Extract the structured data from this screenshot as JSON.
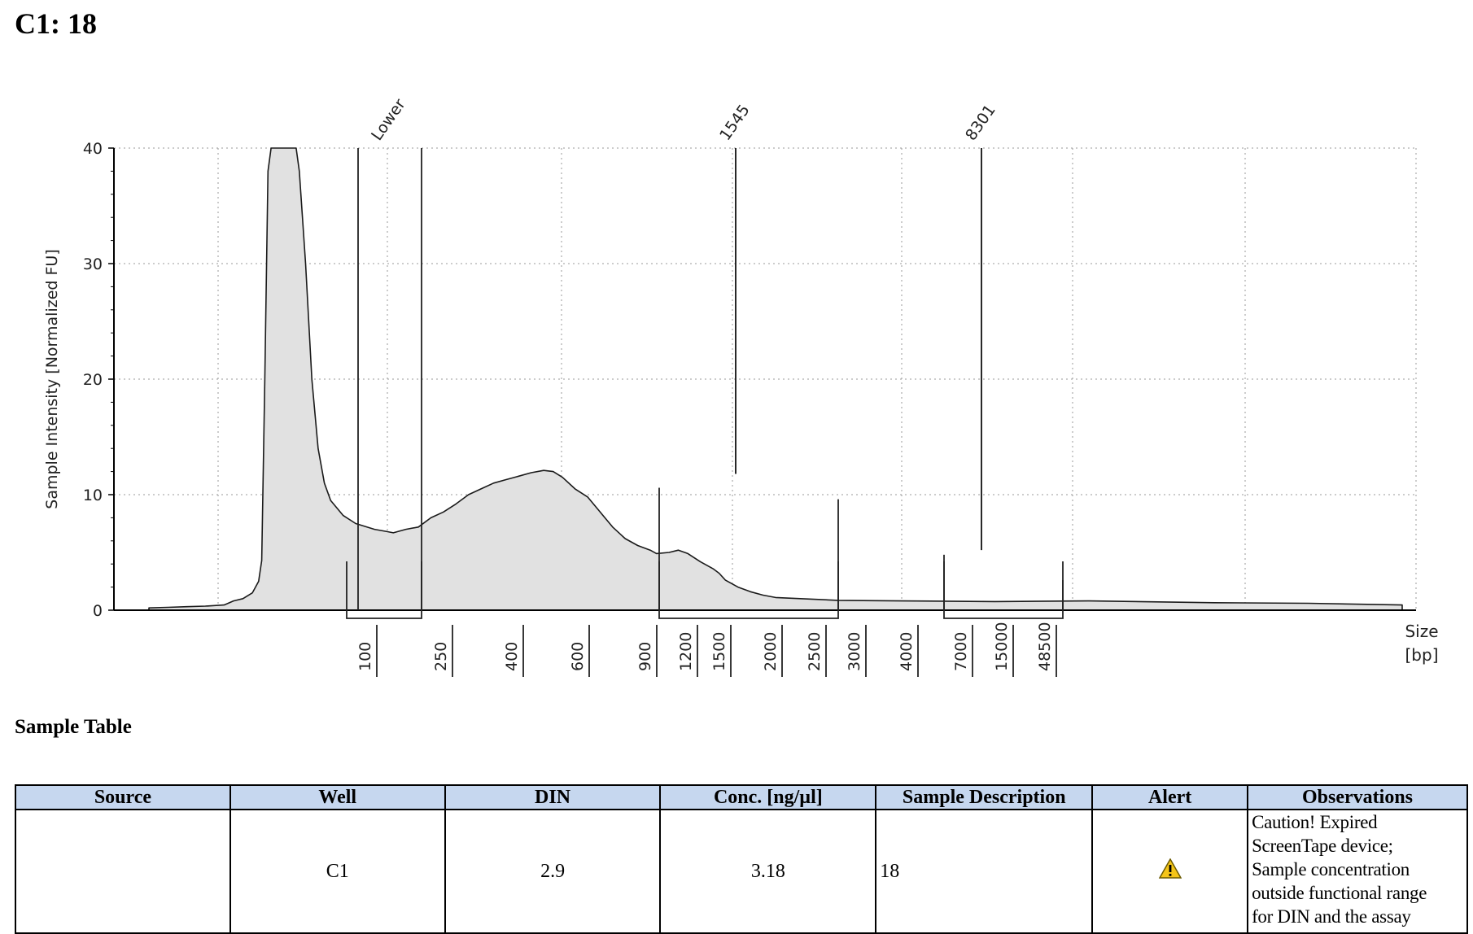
{
  "page": {
    "title": "C1: 18"
  },
  "chart_data": {
    "type": "area",
    "ylabel": "Sample Intensity [Normalized FU]",
    "xlabel": "Size\n[bp]",
    "ylim": [
      0,
      40
    ],
    "y_ticks": [
      0,
      10,
      20,
      30,
      40
    ],
    "grid": true,
    "size_ladder": [
      "100",
      "250",
      "400",
      "600",
      "900",
      "1200",
      "1500",
      "2000",
      "2500",
      "3000",
      "4000",
      "7000",
      "15000",
      "48500"
    ],
    "peaks": [
      {
        "label": "Lower",
        "height": 40
      },
      {
        "label": "1545",
        "height": 11.8
      },
      {
        "label": "8301",
        "height": 5.2
      }
    ],
    "trace_points": [
      [
        0.0,
        0.2
      ],
      [
        0.03,
        0.25
      ],
      [
        0.06,
        0.3
      ],
      [
        0.09,
        0.35
      ],
      [
        0.12,
        0.45
      ],
      [
        0.135,
        0.8
      ],
      [
        0.15,
        1.0
      ],
      [
        0.165,
        1.5
      ],
      [
        0.175,
        2.5
      ],
      [
        0.18,
        4.3
      ],
      [
        0.185,
        20
      ],
      [
        0.19,
        38
      ],
      [
        0.195,
        40
      ],
      [
        0.2,
        40
      ],
      [
        0.23,
        40
      ],
      [
        0.235,
        40
      ],
      [
        0.24,
        38
      ],
      [
        0.25,
        30
      ],
      [
        0.26,
        20
      ],
      [
        0.27,
        14
      ],
      [
        0.28,
        11
      ],
      [
        0.29,
        9.5
      ],
      [
        0.31,
        8.2
      ],
      [
        0.33,
        7.5
      ],
      [
        0.36,
        7.0
      ],
      [
        0.38,
        6.8
      ],
      [
        0.39,
        6.7
      ],
      [
        0.41,
        7.0
      ],
      [
        0.43,
        7.2
      ],
      [
        0.45,
        8.0
      ],
      [
        0.47,
        8.5
      ],
      [
        0.49,
        9.2
      ],
      [
        0.51,
        10.0
      ],
      [
        0.53,
        10.5
      ],
      [
        0.55,
        11.0
      ],
      [
        0.57,
        11.3
      ],
      [
        0.59,
        11.6
      ],
      [
        0.61,
        11.9
      ],
      [
        0.63,
        12.1
      ],
      [
        0.645,
        12.0
      ],
      [
        0.66,
        11.5
      ],
      [
        0.68,
        10.5
      ],
      [
        0.7,
        9.8
      ],
      [
        0.72,
        8.5
      ],
      [
        0.74,
        7.2
      ],
      [
        0.76,
        6.2
      ],
      [
        0.78,
        5.6
      ],
      [
        0.8,
        5.2
      ],
      [
        0.81,
        4.9
      ],
      [
        0.83,
        5.0
      ],
      [
        0.845,
        5.2
      ],
      [
        0.86,
        4.9
      ],
      [
        0.88,
        4.2
      ],
      [
        0.9,
        3.6
      ],
      [
        0.91,
        3.2
      ],
      [
        0.92,
        2.6
      ],
      [
        0.94,
        2.0
      ],
      [
        0.96,
        1.6
      ],
      [
        0.98,
        1.3
      ],
      [
        1.0,
        1.1
      ]
    ],
    "upper_tail": [
      [
        1.0,
        1.1
      ],
      [
        1.1,
        0.85
      ],
      [
        1.2,
        0.8
      ],
      [
        1.35,
        0.75
      ],
      [
        1.5,
        0.8
      ],
      [
        1.7,
        0.65
      ],
      [
        1.85,
        0.6
      ],
      [
        2.0,
        0.45
      ]
    ]
  },
  "table": {
    "title": "Sample Table",
    "headers": [
      "Source",
      "Well",
      "DIN",
      "Conc. [ng/µl]",
      "Sample Description",
      "Alert",
      "Observations"
    ],
    "row": {
      "source": "",
      "well": "C1",
      "din": "2.9",
      "conc": "3.18",
      "description": "18",
      "alert_icon": "warning-icon",
      "observations_lines": [
        "Caution! Expired",
        "ScreenTape device;",
        "Sample concentration",
        "outside functional range",
        "for DIN and the assay"
      ]
    }
  }
}
